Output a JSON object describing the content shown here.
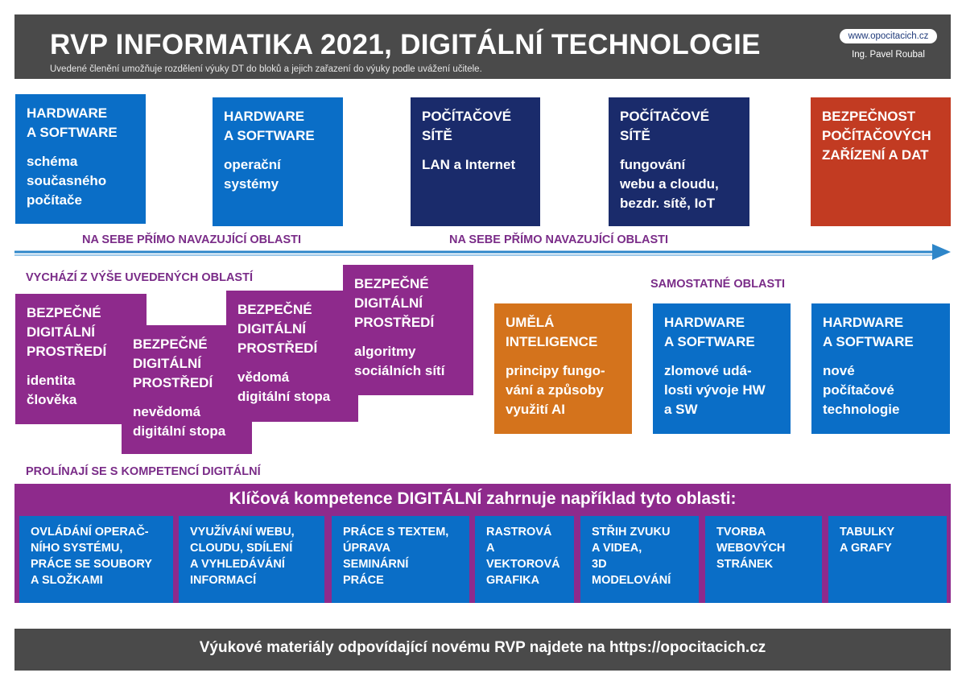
{
  "header": {
    "title": "RVP INFORMATIKA 2021, DIGITÁLNÍ TECHNOLOGIE",
    "subtitle": "Uvedené členění umožňuje rozdělení výuky DT do bloků a jejich zařazení do výuky podle uvážení učitele.",
    "website": "www.opocitacich.cz",
    "author": "Ing. Pavel Roubal"
  },
  "top_blocks": [
    {
      "heading": "HARDWARE\nA SOFTWARE",
      "sub": "schéma\nsoučasného\npočítače",
      "color": "#0a6ec7"
    },
    {
      "heading": "HARDWARE\nA SOFTWARE",
      "sub": "operační\nsystémy",
      "color": "#0a6ec7"
    },
    {
      "heading": "POČÍTAČOVÉ\nSÍTĚ",
      "sub": "LAN a Internet",
      "color": "#1a2b6b"
    },
    {
      "heading": "POČÍTAČOVÉ\nSÍTĚ",
      "sub": "fungování\nwebu a cloudu,\nbezdr. sítě, IoT",
      "color": "#1a2b6b"
    },
    {
      "heading": "BEZPEČNOST\nPOČÍTAČOVÝCH\nZAŘÍZENÍ A DAT",
      "sub": "",
      "color": "#c23b22"
    }
  ],
  "arrow_labels": [
    "NA SEBE PŘÍMO NAVAZUJÍCÍ OBLASTI",
    "NA SEBE PŘÍMO NAVAZUJÍCÍ OBLASTI"
  ],
  "labels": {
    "derived": "VYCHÁZÍ Z VÝŠE UVEDENÝCH OBLASTÍ",
    "independent": "SAMOSTATNÉ OBLASTI",
    "overlap": "PROLÍNAJÍ SE S KOMPETENCÍ DIGITÁLNÍ"
  },
  "safe_blocks": [
    {
      "heading": "BEZPEČNÉ\nDIGITÁLNÍ\nPROSTŘEDÍ",
      "sub": "identita\nčlověka"
    },
    {
      "heading": "BEZPEČNÉ\nDIGITÁLNÍ\nPROSTŘEDÍ",
      "sub": "nevědomá\ndigitální stopa"
    },
    {
      "heading": "BEZPEČNÉ\nDIGITÁLNÍ\nPROSTŘEDÍ",
      "sub": "vědomá\ndigitální stopa"
    },
    {
      "heading": "BEZPEČNÉ\nDIGITÁLNÍ\nPROSTŘEDÍ",
      "sub": "algoritmy\nsociálních sítí"
    }
  ],
  "independent_blocks": [
    {
      "heading": "UMĚLÁ\nINTELIGENCE",
      "sub": "principy fungo-\nvání a způsoby\nvyužití AI",
      "color": "#d4731c"
    },
    {
      "heading": "HARDWARE\nA SOFTWARE",
      "sub": "zlomové udá-\nlosti vývoje HW\na SW",
      "color": "#0a6ec7"
    },
    {
      "heading": "HARDWARE\nA SOFTWARE",
      "sub": "nové\npočítačové\ntechnologie",
      "color": "#0a6ec7"
    }
  ],
  "competence": {
    "title": "Klíčová kompetence DIGITÁLNÍ zahrnuje například tyto oblasti:",
    "items": [
      "OVLÁDÁNÍ OPERAČ-\nNÍHO  SYSTÉMU,\nPRÁCE SE SOUBORY\nA SLOŽKAMI",
      "VYUŽÍVÁNÍ WEBU,\nCLOUDU, SDÍLENÍ\nA VYHLEDÁVÁNÍ\nINFORMACÍ",
      "PRÁCE S TEXTEM,\nÚPRAVA\nSEMINÁRNÍ\nPRÁCE",
      "RASTROVÁ\nA\nVEKTOROVÁ\nGRAFIKA",
      "STŘIH ZVUKU\nA VIDEA,\n3D\nMODELOVÁNÍ",
      "TVORBA\nWEBOVÝCH\nSTRÁNEK",
      "TABULKY\nA GRAFY"
    ]
  },
  "footer": {
    "text": "Výukové materiály odpovídající novému RVP najdete na https://opocitacich.cz"
  },
  "colors": {
    "header_bg": "#4a4a4a",
    "blue": "#0a6ec7",
    "navy": "#1a2b6b",
    "red": "#c23b22",
    "purple": "#8e2a8c",
    "orange": "#d4731c",
    "label_purple": "#7a2c88"
  }
}
